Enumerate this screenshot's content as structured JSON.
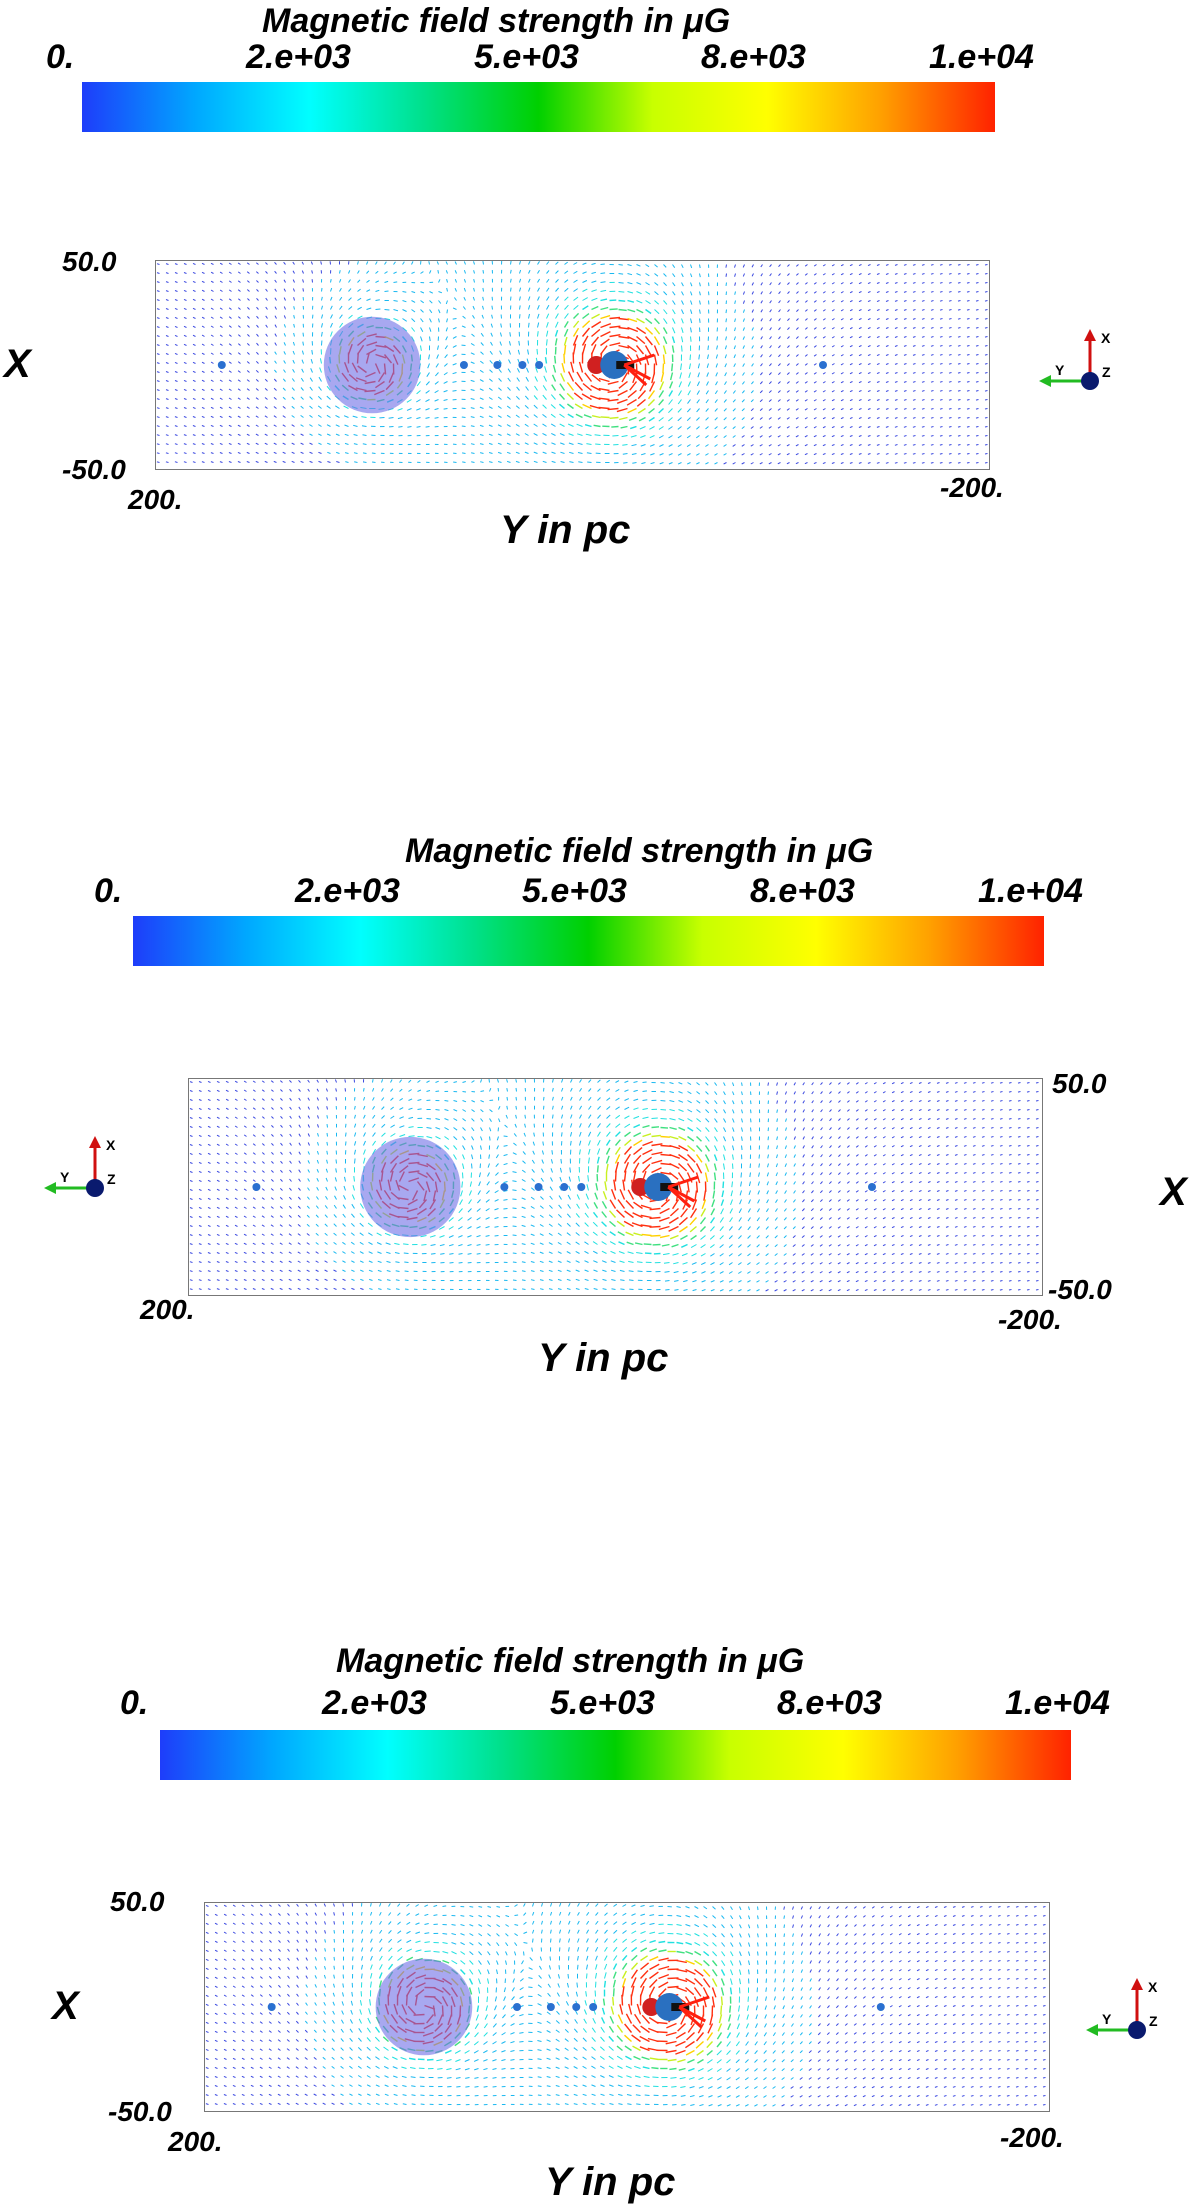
{
  "panels": [
    {
      "colorbar": {
        "title": "Magnetic field strength in μG",
        "ticks": [
          "0.",
          "2.e+03",
          "5.e+03",
          "8.e+03",
          "1.e+04"
        ],
        "colors": [
          "#1e3dfa",
          "#00a8ff",
          "#00ffff",
          "#00e08a",
          "#00d000",
          "#c8ff00",
          "#ffff00",
          "#ffa000",
          "#ff2200"
        ]
      },
      "x_axis": {
        "name": "X",
        "ticks": [
          "50.0",
          "-50.0"
        ]
      },
      "y_axis": {
        "name": "Y in pc",
        "ticks": [
          "200.",
          "-200."
        ]
      },
      "triad": {
        "x": "X",
        "y": "Y",
        "z": "Z"
      }
    },
    {
      "colorbar": {
        "title": "Magnetic field strength in μG",
        "ticks": [
          "0.",
          "2.e+03",
          "5.e+03",
          "8.e+03",
          "1.e+04"
        ],
        "colors": [
          "#1e3dfa",
          "#00a8ff",
          "#00ffff",
          "#00e08a",
          "#00d000",
          "#c8ff00",
          "#ffff00",
          "#ffa000",
          "#ff2200"
        ]
      },
      "x_axis": {
        "name": "X",
        "ticks": [
          "50.0",
          "-50.0"
        ]
      },
      "y_axis": {
        "name": "Y in pc",
        "ticks": [
          "200.",
          "-200."
        ]
      },
      "triad": {
        "x": "X",
        "y": "Y",
        "z": "Z"
      }
    },
    {
      "colorbar": {
        "title": "Magnetic field strength in μG",
        "ticks": [
          "0.",
          "2.e+03",
          "5.e+03",
          "8.e+03",
          "1.e+04"
        ],
        "colors": [
          "#1e3dfa",
          "#00a8ff",
          "#00ffff",
          "#00e08a",
          "#00d000",
          "#c8ff00",
          "#ffff00",
          "#ffa000",
          "#ff2200"
        ]
      },
      "x_axis": {
        "name": "X",
        "ticks": [
          "50.0",
          "-50.0"
        ]
      },
      "y_axis": {
        "name": "Y in pc",
        "ticks": [
          "200.",
          "-200."
        ]
      },
      "triad": {
        "x": "X",
        "y": "Y",
        "z": "Z"
      }
    }
  ]
}
